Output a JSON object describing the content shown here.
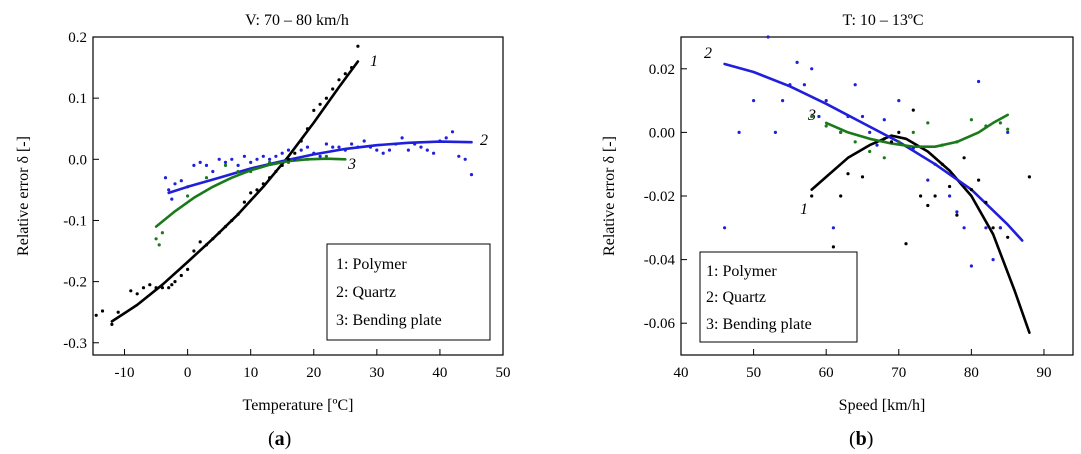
{
  "chart_data": [
    {
      "type": "scatter",
      "title": "V: 70 – 80 km/h",
      "xlabel": "Temperature [ºC]",
      "ylabel": "Relative error δ [-]",
      "xlim": [
        -15,
        50
      ],
      "ylim": [
        -0.32,
        0.2
      ],
      "xticks": [
        -10,
        0,
        10,
        20,
        30,
        40,
        50
      ],
      "yticks": [
        0.2,
        0.1,
        0.0,
        -0.1,
        -0.2,
        -0.3
      ],
      "xtick_labels": [
        "-10",
        "0",
        "10",
        "20",
        "30",
        "40",
        "50"
      ],
      "ytick_labels": [
        "0.2",
        "0.1",
        "0.0",
        "-0.1",
        "-0.2",
        "-0.3"
      ],
      "legend": [
        "1: Polymer",
        "2: Quartz",
        "3: Bending plate"
      ],
      "legend_position": "bottom-right",
      "panel_label": "a",
      "colors": {
        "polymer": "#000000",
        "quartz": "#1f1fdc",
        "bending": "#1a7a1a"
      },
      "series": [
        {
          "curve_label": "1",
          "color": "#000000",
          "fit": {
            "x": [
              -12,
              -8,
              -4,
              0,
              4,
              8,
              12,
              16,
              20,
              24,
              27
            ],
            "y": [
              -0.265,
              -0.238,
              -0.205,
              -0.168,
              -0.13,
              -0.09,
              -0.045,
              0.005,
              0.06,
              0.118,
              0.16
            ]
          },
          "points": {
            "x": [
              -14.5,
              -13.5,
              -12,
              -11,
              -9,
              -8,
              -7,
              -6,
              -5,
              -4,
              -3,
              -2.5,
              -2,
              -1,
              0,
              1,
              2,
              3,
              4,
              5,
              6,
              7,
              8,
              9,
              10,
              11,
              12,
              13,
              14,
              15,
              16,
              17,
              18,
              19,
              20,
              21,
              22,
              23,
              24,
              25,
              26,
              27
            ],
            "y": [
              -0.255,
              -0.248,
              -0.27,
              -0.25,
              -0.215,
              -0.22,
              -0.21,
              -0.205,
              -0.21,
              -0.21,
              -0.21,
              -0.205,
              -0.2,
              -0.19,
              -0.18,
              -0.15,
              -0.135,
              -0.14,
              -0.13,
              -0.12,
              -0.11,
              -0.1,
              -0.09,
              -0.07,
              -0.055,
              -0.05,
              -0.04,
              -0.03,
              -0.02,
              -0.01,
              0.0,
              0.01,
              0.03,
              0.05,
              0.08,
              0.09,
              0.1,
              0.115,
              0.13,
              0.14,
              0.15,
              0.185
            ]
          }
        },
        {
          "curve_label": "2",
          "color": "#1f1fdc",
          "fit": {
            "x": [
              -3,
              0,
              5,
              10,
              15,
              20,
              25,
              30,
              35,
              40,
              45
            ],
            "y": [
              -0.055,
              -0.045,
              -0.03,
              -0.015,
              -0.003,
              0.008,
              0.017,
              0.023,
              0.027,
              0.029,
              0.028
            ]
          },
          "points": {
            "x": [
              -3.5,
              -3,
              -2.5,
              -2,
              -1,
              0,
              1,
              2,
              3,
              4,
              5,
              6,
              7,
              8,
              9,
              10,
              11,
              12,
              13,
              14,
              15,
              16,
              17,
              18,
              19,
              20,
              21,
              22,
              23,
              24,
              25,
              26,
              27,
              28,
              29,
              30,
              31,
              32,
              33,
              34,
              35,
              36,
              37,
              38,
              39,
              40,
              41,
              42,
              43,
              44,
              45
            ],
            "y": [
              -0.03,
              -0.05,
              -0.065,
              -0.04,
              -0.035,
              -0.045,
              -0.01,
              -0.005,
              -0.01,
              -0.02,
              0.0,
              -0.005,
              0.0,
              -0.01,
              0.005,
              -0.005,
              0.0,
              0.005,
              0.0,
              0.005,
              0.01,
              0.015,
              0.0,
              0.015,
              0.02,
              0.01,
              0.005,
              0.025,
              0.02,
              0.02,
              0.015,
              0.025,
              0.02,
              0.03,
              0.02,
              0.015,
              0.01,
              0.015,
              0.025,
              0.035,
              0.015,
              0.025,
              0.02,
              0.015,
              0.01,
              0.03,
              0.035,
              0.045,
              0.005,
              0.0,
              -0.025
            ]
          }
        },
        {
          "curve_label": "3",
          "color": "#1a7a1a",
          "fit": {
            "x": [
              -5,
              -2,
              1,
              4,
              7,
              10,
              13,
              16,
              19,
              22,
              25
            ],
            "y": [
              -0.11,
              -0.085,
              -0.063,
              -0.045,
              -0.03,
              -0.018,
              -0.009,
              -0.003,
              0.0,
              0.001,
              0.0
            ]
          },
          "points": {
            "x": [
              -5,
              -4.5,
              -4,
              0,
              3,
              6,
              8,
              10,
              13,
              16,
              19,
              22
            ],
            "y": [
              -0.13,
              -0.14,
              -0.12,
              -0.06,
              -0.03,
              -0.01,
              -0.02,
              -0.02,
              -0.005,
              -0.005,
              0.0,
              0.005
            ]
          }
        }
      ]
    },
    {
      "type": "scatter",
      "title": "T: 10 – 13ºC",
      "xlabel": "Speed [km/h]",
      "ylabel": "Relative error δ [-]",
      "xlim": [
        40,
        94
      ],
      "ylim": [
        -0.07,
        0.03
      ],
      "xticks": [
        40,
        50,
        60,
        70,
        80,
        90
      ],
      "yticks": [
        0.02,
        0.0,
        -0.02,
        -0.04,
        -0.06
      ],
      "xtick_labels": [
        "40",
        "50",
        "60",
        "70",
        "80",
        "90"
      ],
      "ytick_labels": [
        "0.02",
        "0.00",
        "-0.02",
        "-0.04",
        "-0.06"
      ],
      "legend": [
        "1: Polymer",
        "2: Quartz",
        "3: Bending plate"
      ],
      "legend_position": "bottom-left",
      "panel_label": "b",
      "colors": {
        "polymer": "#000000",
        "quartz": "#1f1fdc",
        "bending": "#1a7a1a"
      },
      "series": [
        {
          "curve_label": "1",
          "color": "#000000",
          "fit": {
            "x": [
              58,
              60,
              63,
              66,
              69,
              71,
              74,
              77,
              80,
              83,
              86,
              88
            ],
            "y": [
              -0.018,
              -0.014,
              -0.008,
              -0.004,
              -0.001,
              -0.002,
              -0.006,
              -0.012,
              -0.02,
              -0.032,
              -0.05,
              -0.063
            ]
          },
          "points": {
            "x": [
              58,
              61,
              62,
              63,
              65,
              68,
              69,
              70,
              71,
              72,
              73,
              74,
              75,
              76,
              77,
              78,
              79,
              80,
              81,
              82,
              83,
              84,
              85,
              88
            ],
            "y": [
              -0.02,
              -0.036,
              -0.02,
              -0.013,
              -0.014,
              -0.002,
              -0.003,
              0.0,
              -0.035,
              0.007,
              -0.02,
              -0.023,
              -0.02,
              -0.01,
              -0.017,
              -0.026,
              -0.008,
              -0.018,
              -0.015,
              -0.022,
              -0.03,
              -0.03,
              -0.033,
              -0.014
            ]
          }
        },
        {
          "curve_label": "2",
          "color": "#1f1fdc",
          "fit": {
            "x": [
              46,
              50,
              55,
              60,
              65,
              70,
              75,
              80,
              85,
              87
            ],
            "y": [
              0.0215,
              0.019,
              0.0145,
              0.009,
              0.003,
              -0.003,
              -0.01,
              -0.018,
              -0.029,
              -0.034
            ]
          },
          "points": {
            "x": [
              46,
              48,
              50,
              52,
              53,
              54,
              55,
              56,
              57,
              58,
              59,
              60,
              61,
              62,
              63,
              64,
              65,
              66,
              67,
              68,
              70,
              72,
              74,
              75,
              77,
              78,
              79,
              80,
              81,
              82,
              83,
              84,
              85
            ],
            "y": [
              -0.03,
              0.0,
              0.01,
              0.03,
              0.0,
              0.01,
              0.015,
              0.022,
              0.015,
              0.02,
              0.005,
              0.01,
              -0.03,
              0.0,
              0.005,
              0.015,
              0.005,
              0.0,
              -0.004,
              0.004,
              0.01,
              -0.005,
              -0.015,
              -0.01,
              -0.02,
              -0.025,
              -0.03,
              -0.042,
              0.016,
              -0.03,
              -0.04,
              -0.03,
              0.0
            ]
          }
        },
        {
          "curve_label": "3",
          "color": "#1a7a1a",
          "fit": {
            "x": [
              60,
              63,
              66,
              69,
              72,
              75,
              78,
              81,
              83,
              85
            ],
            "y": [
              0.003,
              0.0,
              -0.002,
              -0.0035,
              -0.0045,
              -0.0045,
              -0.003,
              0.0,
              0.003,
              0.0055
            ]
          },
          "points": {
            "x": [
              58,
              60,
              62,
              64,
              66,
              68,
              70,
              72,
              74,
              76,
              78,
              80,
              82,
              84,
              85
            ],
            "y": [
              0.005,
              0.002,
              0.0,
              -0.003,
              -0.006,
              -0.008,
              -0.003,
              0.0,
              0.003,
              -0.004,
              -0.003,
              0.004,
              0.002,
              0.003,
              0.001
            ]
          }
        }
      ]
    }
  ]
}
